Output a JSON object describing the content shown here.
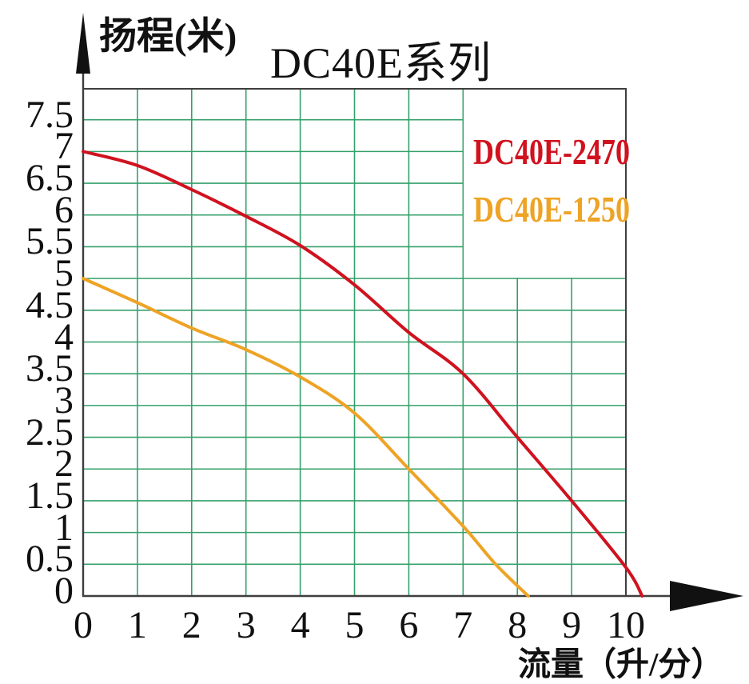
{
  "chart_data": {
    "type": "line",
    "title": "DC40E系列",
    "ylabel": "扬程(米)",
    "xlabel": "流量（升/分）",
    "xlim": [
      0,
      10
    ],
    "ylim": [
      0,
      8
    ],
    "grid": true,
    "grid_color": "#35A06B",
    "axis_color": "#3E3E3E",
    "arrow_color": "#111111",
    "background": "#FFFFFF",
    "x_ticks": [
      {
        "value": 0,
        "label": "0"
      },
      {
        "value": 1,
        "label": "1"
      },
      {
        "value": 2,
        "label": "2"
      },
      {
        "value": 3,
        "label": "3"
      },
      {
        "value": 4,
        "label": "4"
      },
      {
        "value": 5,
        "label": "5"
      },
      {
        "value": 6,
        "label": "6"
      },
      {
        "value": 7,
        "label": "7"
      },
      {
        "value": 8,
        "label": "8"
      },
      {
        "value": 9,
        "label": "9"
      },
      {
        "value": 10,
        "label": "10"
      }
    ],
    "y_ticks": [
      {
        "value": 0,
        "label": "0"
      },
      {
        "value": 0.5,
        "label": "0.5"
      },
      {
        "value": 1,
        "label": "1"
      },
      {
        "value": 1.5,
        "label": "1.5"
      },
      {
        "value": 2,
        "label": "2"
      },
      {
        "value": 2.5,
        "label": "2.5"
      },
      {
        "value": 3,
        "label": "3"
      },
      {
        "value": 3.5,
        "label": "3.5"
      },
      {
        "value": 4,
        "label": "4"
      },
      {
        "value": 4.5,
        "label": "4.5"
      },
      {
        "value": 5,
        "label": "5"
      },
      {
        "value": 5.5,
        "label": "5.5"
      },
      {
        "value": 6,
        "label": "6"
      },
      {
        "value": 6.5,
        "label": "6.5"
      },
      {
        "value": 7,
        "label": "7"
      },
      {
        "value": 7.5,
        "label": "7.5"
      }
    ],
    "legend": {
      "position": "top-right",
      "entries": [
        "DC40E-2470",
        "DC40E-1250"
      ]
    },
    "series": [
      {
        "name": "DC40E-2470",
        "color": "#D0121F",
        "points": [
          [
            0,
            7.0
          ],
          [
            1,
            6.78
          ],
          [
            2,
            6.4
          ],
          [
            3,
            5.98
          ],
          [
            4,
            5.52
          ],
          [
            5,
            4.9
          ],
          [
            6,
            4.15
          ],
          [
            7,
            3.5
          ],
          [
            8,
            2.5
          ],
          [
            9,
            1.5
          ],
          [
            10,
            0.45
          ],
          [
            10.3,
            0
          ]
        ]
      },
      {
        "name": "DC40E-1250",
        "color": "#EEA325",
        "points": [
          [
            0,
            5.0
          ],
          [
            1,
            4.62
          ],
          [
            2,
            4.22
          ],
          [
            3,
            3.88
          ],
          [
            4,
            3.45
          ],
          [
            5,
            2.88
          ],
          [
            6,
            2.0
          ],
          [
            7,
            1.1
          ],
          [
            7.6,
            0.5
          ],
          [
            8.2,
            0
          ]
        ]
      }
    ]
  }
}
